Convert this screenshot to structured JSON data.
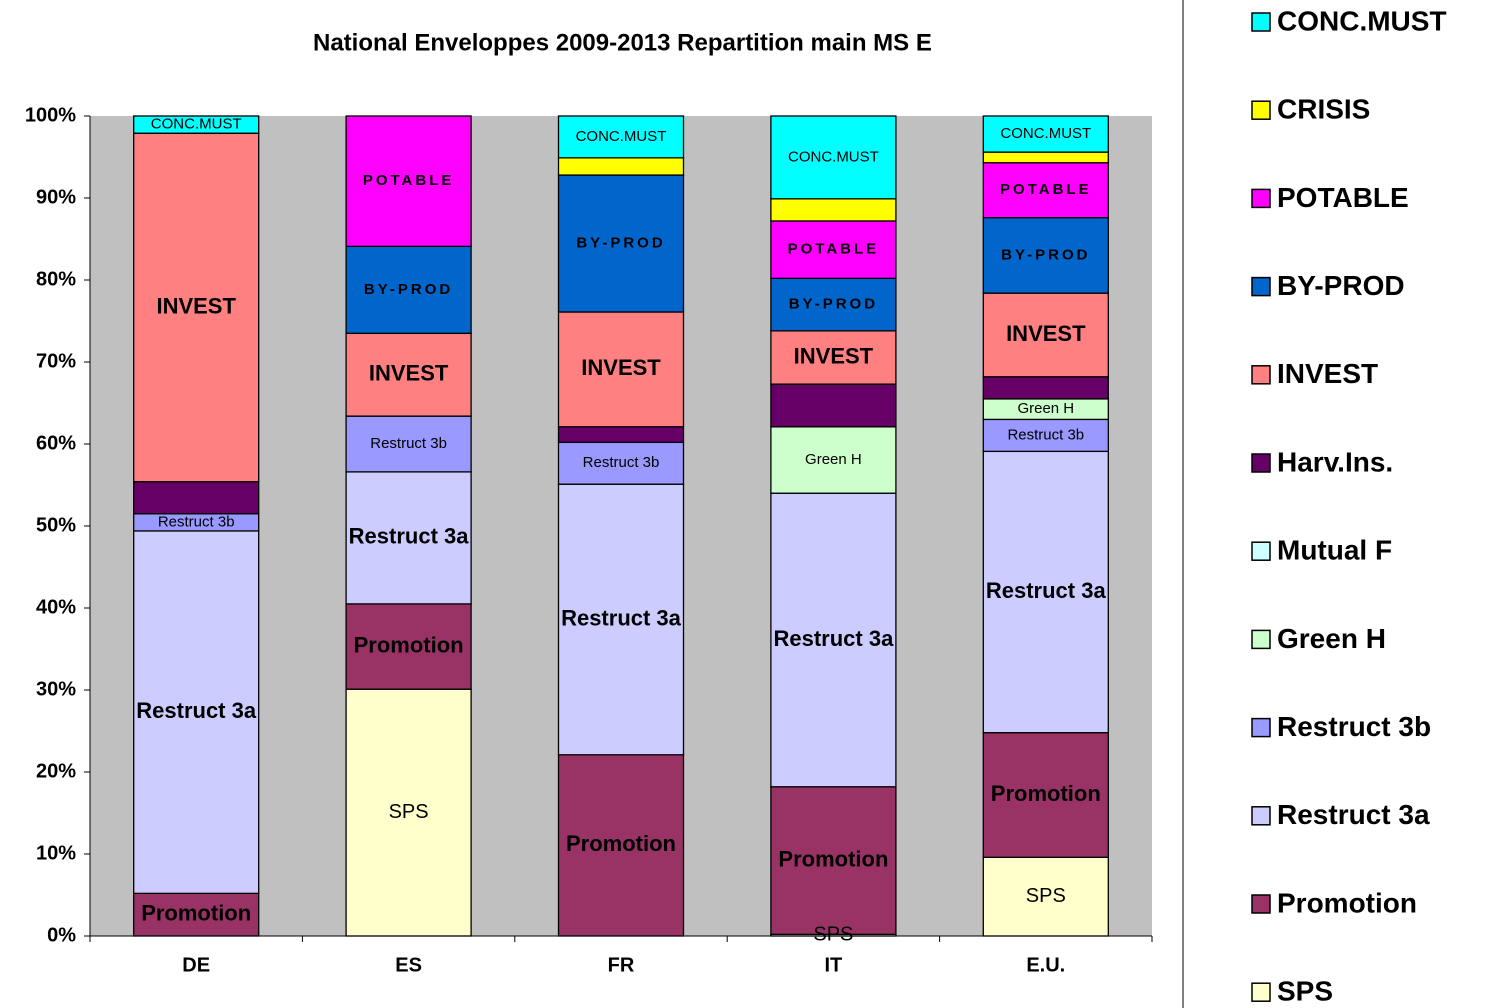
{
  "chart_data": {
    "type": "stacked_bar",
    "title": "National Enveloppes 2009-2013  Repartition main MS E",
    "categories": [
      "DE",
      "ES",
      "FR",
      "IT",
      "E.U."
    ],
    "ylim": [
      0,
      100
    ],
    "yticks": [
      {
        "value": 0,
        "label": "0%"
      },
      {
        "value": 10,
        "label": "10%"
      },
      {
        "value": 20,
        "label": "20%"
      },
      {
        "value": 30,
        "label": "30%"
      },
      {
        "value": 40,
        "label": "40%"
      },
      {
        "value": 50,
        "label": "50%"
      },
      {
        "value": 60,
        "label": "60%"
      },
      {
        "value": 70,
        "label": "70%"
      },
      {
        "value": 80,
        "label": "80%"
      },
      {
        "value": 90,
        "label": "90%"
      },
      {
        "value": 100,
        "label": "100%"
      }
    ],
    "grid": false,
    "legend": "right",
    "series": [
      {
        "name": "SPS",
        "color": "#ffffcc",
        "show_labels": true,
        "label_style": "large",
        "values": [
          0,
          30.1,
          0,
          0.2,
          9.6
        ]
      },
      {
        "name": "Promotion",
        "color": "#993366",
        "show_labels": true,
        "label_style": "bold",
        "values": [
          5.2,
          10.4,
          22.1,
          18.0,
          15.2
        ]
      },
      {
        "name": "Restruct 3a",
        "color": "#ccccff",
        "show_labels": true,
        "label_style": "bold",
        "values": [
          44.2,
          16.1,
          33.0,
          35.8,
          34.3
        ]
      },
      {
        "name": "Restruct 3b",
        "color": "#9999ff",
        "show_labels": true,
        "label_style": "plain",
        "values": [
          2.1,
          6.8,
          5.1,
          0,
          3.9
        ]
      },
      {
        "name": "Green H",
        "color": "#ccffcc",
        "show_labels": true,
        "label_style": "plain",
        "values": [
          0,
          0,
          0,
          8.1,
          2.5
        ]
      },
      {
        "name": "Mutual F",
        "color": "#ccffff",
        "show_labels": false,
        "label_style": "plain",
        "values": [
          0,
          0,
          0,
          0,
          0
        ]
      },
      {
        "name": "Harv.Ins.",
        "color": "#660066",
        "show_labels": false,
        "label_style": "plain",
        "values": [
          3.9,
          0,
          1.9,
          5.2,
          2.7
        ]
      },
      {
        "name": "INVEST",
        "color": "#ff8080",
        "show_labels": true,
        "label_style": "bold",
        "values": [
          42.5,
          10.1,
          14.0,
          6.5,
          10.2
        ]
      },
      {
        "name": "BY-PROD",
        "color": "#0066cc",
        "show_labels": true,
        "label_style": "spaced",
        "values": [
          0,
          10.6,
          16.7,
          6.4,
          9.2
        ]
      },
      {
        "name": "POTABLE",
        "color": "#ff00ff",
        "show_labels": true,
        "label_style": "spaced",
        "values": [
          0,
          15.9,
          0,
          7.0,
          6.7
        ]
      },
      {
        "name": "CRISIS",
        "color": "#ffff00",
        "show_labels": false,
        "label_style": "plain",
        "values": [
          0,
          0,
          2.1,
          2.7,
          1.3
        ]
      },
      {
        "name": "CONC.MUST",
        "color": "#00ffff",
        "show_labels": true,
        "label_style": "plain",
        "values": [
          2.1,
          0,
          5.1,
          10.1,
          4.4
        ]
      }
    ]
  }
}
